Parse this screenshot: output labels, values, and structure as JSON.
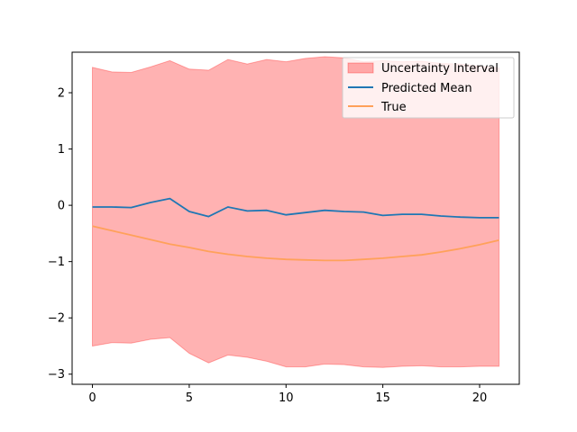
{
  "chart_data": {
    "type": "line",
    "title": "",
    "xlabel": "",
    "ylabel": "",
    "xlim": [
      -1.05,
      22.05
    ],
    "ylim": [
      -3.18,
      2.72
    ],
    "xticks": [
      0,
      5,
      10,
      15,
      20
    ],
    "yticks": [
      -3,
      -2,
      -1,
      0,
      1,
      2
    ],
    "x": [
      0,
      1,
      2,
      3,
      4,
      5,
      6,
      7,
      8,
      9,
      10,
      11,
      12,
      13,
      14,
      15,
      16,
      17,
      18,
      19,
      20,
      21
    ],
    "series": [
      {
        "name": "Uncertainty Interval",
        "kind": "band",
        "color": "#ff0000",
        "opacity": 0.3,
        "lower": [
          -2.5,
          -2.44,
          -2.45,
          -2.38,
          -2.35,
          -2.63,
          -2.8,
          -2.66,
          -2.7,
          -2.77,
          -2.87,
          -2.87,
          -2.82,
          -2.83,
          -2.87,
          -2.88,
          -2.86,
          -2.85,
          -2.87,
          -2.87,
          -2.86,
          -2.86
        ],
        "upper": [
          2.45,
          2.37,
          2.36,
          2.46,
          2.57,
          2.42,
          2.4,
          2.59,
          2.51,
          2.59,
          2.55,
          2.61,
          2.64,
          2.62,
          2.55,
          2.57,
          2.55,
          2.56,
          2.52,
          2.51,
          2.47,
          2.44
        ]
      },
      {
        "name": "Predicted Mean",
        "kind": "line",
        "color": "#1f77b4",
        "values": [
          -0.03,
          -0.03,
          -0.04,
          0.05,
          0.12,
          -0.11,
          -0.2,
          -0.03,
          -0.1,
          -0.09,
          -0.17,
          -0.13,
          -0.09,
          -0.11,
          -0.12,
          -0.18,
          -0.16,
          -0.16,
          -0.19,
          -0.21,
          -0.22,
          -0.22
        ]
      },
      {
        "name": "True",
        "kind": "line",
        "color": "#ffa15a",
        "values": [
          -0.37,
          -0.45,
          -0.53,
          -0.61,
          -0.69,
          -0.75,
          -0.82,
          -0.87,
          -0.91,
          -0.94,
          -0.96,
          -0.97,
          -0.98,
          -0.98,
          -0.96,
          -0.94,
          -0.91,
          -0.88,
          -0.83,
          -0.77,
          -0.7,
          -0.62
        ]
      }
    ],
    "legend": {
      "placement": "top-right",
      "entries": [
        "Uncertainty Interval",
        "Predicted Mean",
        "True"
      ]
    },
    "grid": false
  }
}
